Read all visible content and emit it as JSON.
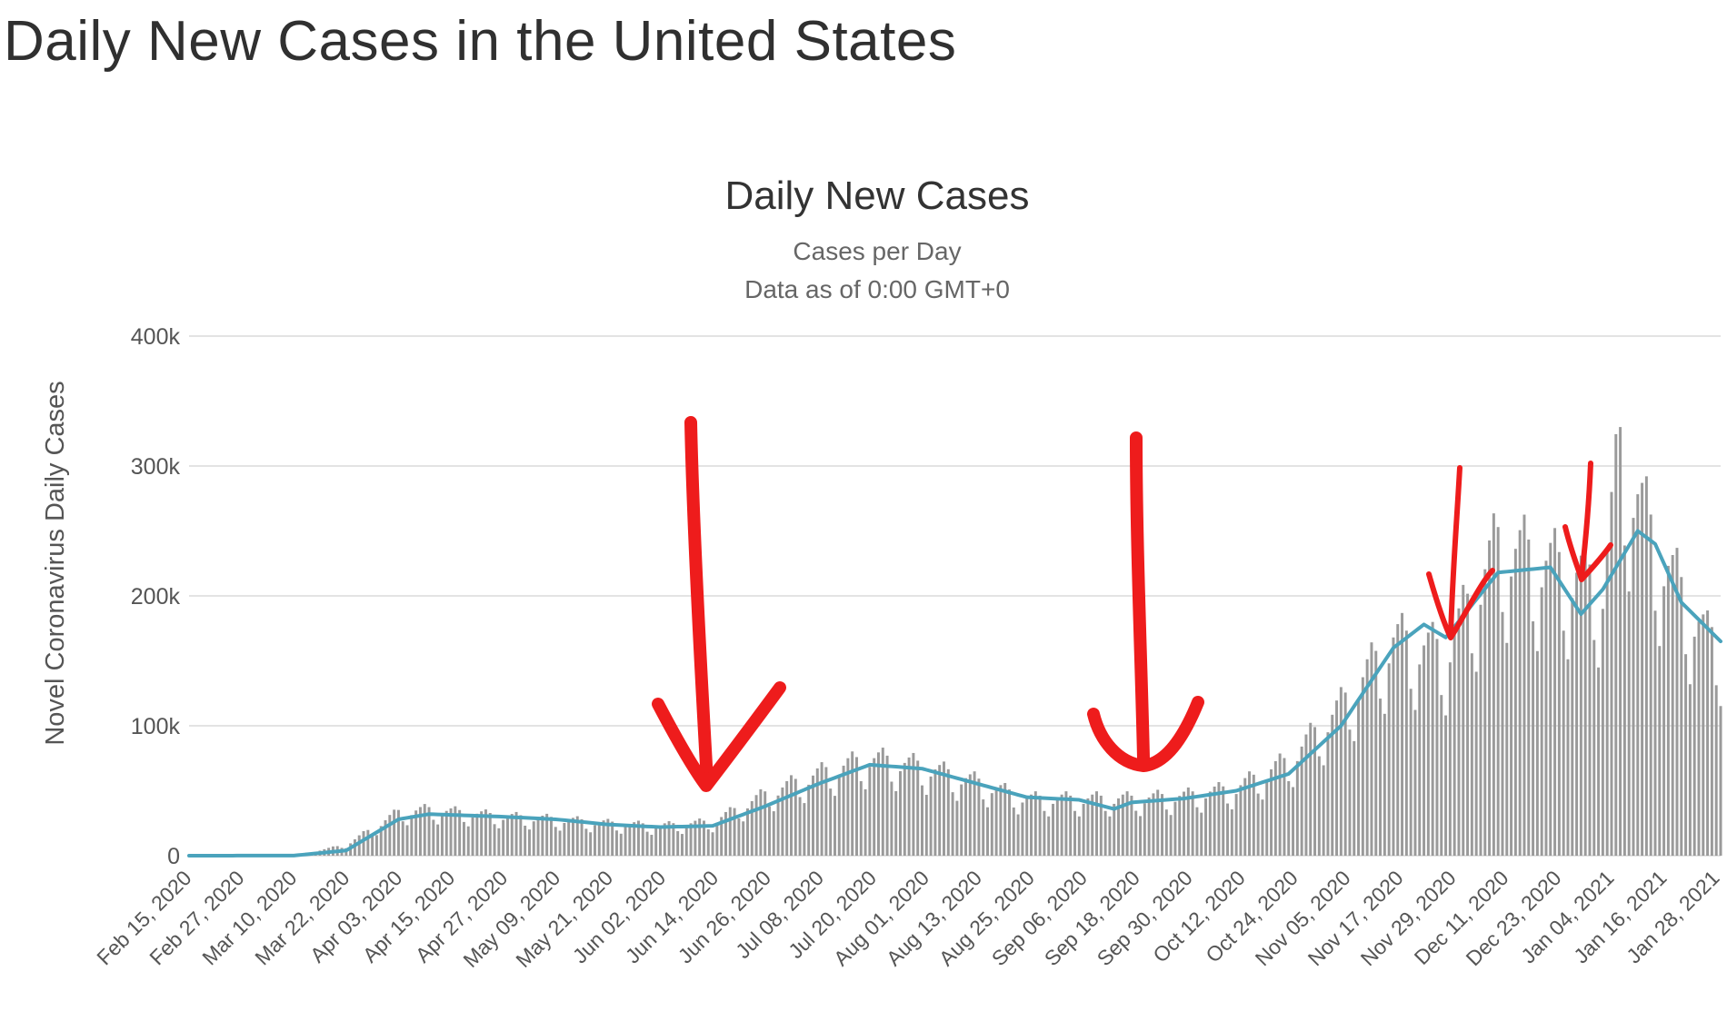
{
  "page_title": "Daily New Cases in the United States",
  "colors": {
    "bars": "#9a9a9a",
    "line": "#4aa3bc",
    "grid": "#e3e3e3",
    "annotation": "#ee1c1c"
  },
  "chart_data": {
    "type": "bar",
    "title": "Daily New Cases",
    "subtitle": "Cases per Day",
    "subtitle2": "Data as of 0:00 GMT+0",
    "ylabel": "Novel Coronavirus Daily Cases",
    "xlabel": "",
    "ylim": [
      0,
      400000
    ],
    "yticks": [
      {
        "value": 0,
        "label": "0"
      },
      {
        "value": 100000,
        "label": "100k"
      },
      {
        "value": 200000,
        "label": "200k"
      },
      {
        "value": 300000,
        "label": "300k"
      },
      {
        "value": 400000,
        "label": "400k"
      }
    ],
    "grid": true,
    "legend": "none",
    "x_start": "Feb 15, 2020",
    "x_end": "Jan 31, 2021",
    "x_ticks": [
      "Feb 15, 2020",
      "Feb 27, 2020",
      "Mar 10, 2020",
      "Mar 22, 2020",
      "Apr 03, 2020",
      "Apr 15, 2020",
      "Apr 27, 2020",
      "May 09, 2020",
      "May 21, 2020",
      "Jun 02, 2020",
      "Jun 14, 2020",
      "Jun 26, 2020",
      "Jul 08, 2020",
      "Jul 20, 2020",
      "Aug 01, 2020",
      "Aug 13, 2020",
      "Aug 25, 2020",
      "Sep 06, 2020",
      "Sep 18, 2020",
      "Sep 30, 2020",
      "Oct 12, 2020",
      "Oct 24, 2020",
      "Nov 05, 2020",
      "Nov 17, 2020",
      "Nov 29, 2020",
      "Dec 11, 2020",
      "Dec 23, 2020",
      "Jan 04, 2021",
      "Jan 16, 2021",
      "Jan 28, 2021"
    ],
    "daily_cases_approx": [
      {
        "x": "Feb 15, 2020",
        "y": 0
      },
      {
        "x": "Mar 10, 2020",
        "y": 200
      },
      {
        "x": "Mar 22, 2020",
        "y": 8000
      },
      {
        "x": "Apr 03, 2020",
        "y": 32000
      },
      {
        "x": "Apr 10, 2020",
        "y": 34000
      },
      {
        "x": "Apr 27, 2020",
        "y": 29000
      },
      {
        "x": "May 09, 2020",
        "y": 27000
      },
      {
        "x": "May 21, 2020",
        "y": 24000
      },
      {
        "x": "Jun 02, 2020",
        "y": 22000
      },
      {
        "x": "Jun 14, 2020",
        "y": 25000
      },
      {
        "x": "Jun 26, 2020",
        "y": 45000
      },
      {
        "x": "Jul 08, 2020",
        "y": 60000
      },
      {
        "x": "Jul 20, 2020",
        "y": 72000
      },
      {
        "x": "Aug 01, 2020",
        "y": 66000
      },
      {
        "x": "Aug 13, 2020",
        "y": 55000
      },
      {
        "x": "Aug 25, 2020",
        "y": 42000
      },
      {
        "x": "Sep 06, 2020",
        "y": 42000
      },
      {
        "x": "Sep 18, 2020",
        "y": 42000
      },
      {
        "x": "Sep 30, 2020",
        "y": 44000
      },
      {
        "x": "Oct 12, 2020",
        "y": 50000
      },
      {
        "x": "Oct 24, 2020",
        "y": 70000
      },
      {
        "x": "Nov 05, 2020",
        "y": 110000
      },
      {
        "x": "Nov 17, 2020",
        "y": 160000
      },
      {
        "x": "Nov 29, 2020",
        "y": 150000
      },
      {
        "x": "Dec 11, 2020",
        "y": 230000
      },
      {
        "x": "Dec 23, 2020",
        "y": 215000
      },
      {
        "x": "Jan 04, 2021",
        "y": 200000
      },
      {
        "x": "Jan 08, 2021",
        "y": 300000
      },
      {
        "x": "Jan 16, 2021",
        "y": 230000
      },
      {
        "x": "Jan 28, 2021",
        "y": 160000
      }
    ],
    "moving_average": [
      {
        "x": "Feb 15, 2020",
        "y": 0
      },
      {
        "x": "Mar 10, 2020",
        "y": 100
      },
      {
        "x": "Mar 22, 2020",
        "y": 4000
      },
      {
        "x": "Apr 03, 2020",
        "y": 28000
      },
      {
        "x": "Apr 10, 2020",
        "y": 32000
      },
      {
        "x": "Apr 27, 2020",
        "y": 30000
      },
      {
        "x": "May 09, 2020",
        "y": 28000
      },
      {
        "x": "May 21, 2020",
        "y": 24000
      },
      {
        "x": "Jun 02, 2020",
        "y": 22000
      },
      {
        "x": "Jun 14, 2020",
        "y": 23000
      },
      {
        "x": "Jun 26, 2020",
        "y": 38000
      },
      {
        "x": "Jul 08, 2020",
        "y": 55000
      },
      {
        "x": "Jul 20, 2020",
        "y": 70000
      },
      {
        "x": "Aug 01, 2020",
        "y": 67000
      },
      {
        "x": "Aug 13, 2020",
        "y": 56000
      },
      {
        "x": "Aug 25, 2020",
        "y": 45000
      },
      {
        "x": "Sep 06, 2020",
        "y": 43000
      },
      {
        "x": "Sep 14, 2020",
        "y": 36000
      },
      {
        "x": "Sep 18, 2020",
        "y": 41000
      },
      {
        "x": "Sep 30, 2020",
        "y": 44000
      },
      {
        "x": "Oct 12, 2020",
        "y": 50000
      },
      {
        "x": "Oct 24, 2020",
        "y": 63000
      },
      {
        "x": "Nov 05, 2020",
        "y": 100000
      },
      {
        "x": "Nov 17, 2020",
        "y": 160000
      },
      {
        "x": "Nov 24, 2020",
        "y": 178000
      },
      {
        "x": "Nov 29, 2020",
        "y": 168000
      },
      {
        "x": "Dec 11, 2020",
        "y": 218000
      },
      {
        "x": "Dec 23, 2020",
        "y": 222000
      },
      {
        "x": "Dec 30, 2020",
        "y": 186000
      },
      {
        "x": "Jan 04, 2021",
        "y": 205000
      },
      {
        "x": "Jan 12, 2021",
        "y": 250000
      },
      {
        "x": "Jan 16, 2021",
        "y": 240000
      },
      {
        "x": "Jan 22, 2021",
        "y": 195000
      },
      {
        "x": "Jan 31, 2021",
        "y": 165000
      }
    ]
  }
}
